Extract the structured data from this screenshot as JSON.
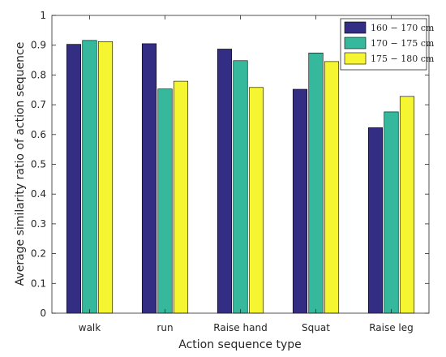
{
  "chart_data": {
    "type": "bar",
    "categories": [
      "walk",
      "run",
      "Raise hand",
      "Squat",
      "Raise leg"
    ],
    "series": [
      {
        "name": "160 − 170 cm",
        "color": "#342d84",
        "values": [
          0.903,
          0.905,
          0.887,
          0.752,
          0.623
        ]
      },
      {
        "name": "170 − 175 cm",
        "color": "#36b89d",
        "values": [
          0.916,
          0.753,
          0.848,
          0.874,
          0.676
        ]
      },
      {
        "name": "175 − 180 cm",
        "color": "#f5f531",
        "values": [
          0.912,
          0.779,
          0.758,
          0.845,
          0.728
        ]
      }
    ],
    "xlabel": "Action sequence type",
    "ylabel": "Average similarity ratio of action sequence",
    "ylim": [
      0,
      1
    ],
    "yticks": [
      "0",
      "0.1",
      "0.2",
      "0.3",
      "0.4",
      "0.5",
      "0.6",
      "0.7",
      "0.8",
      "0.9",
      "1"
    ],
    "grid": false,
    "legend_position": "top-right"
  }
}
